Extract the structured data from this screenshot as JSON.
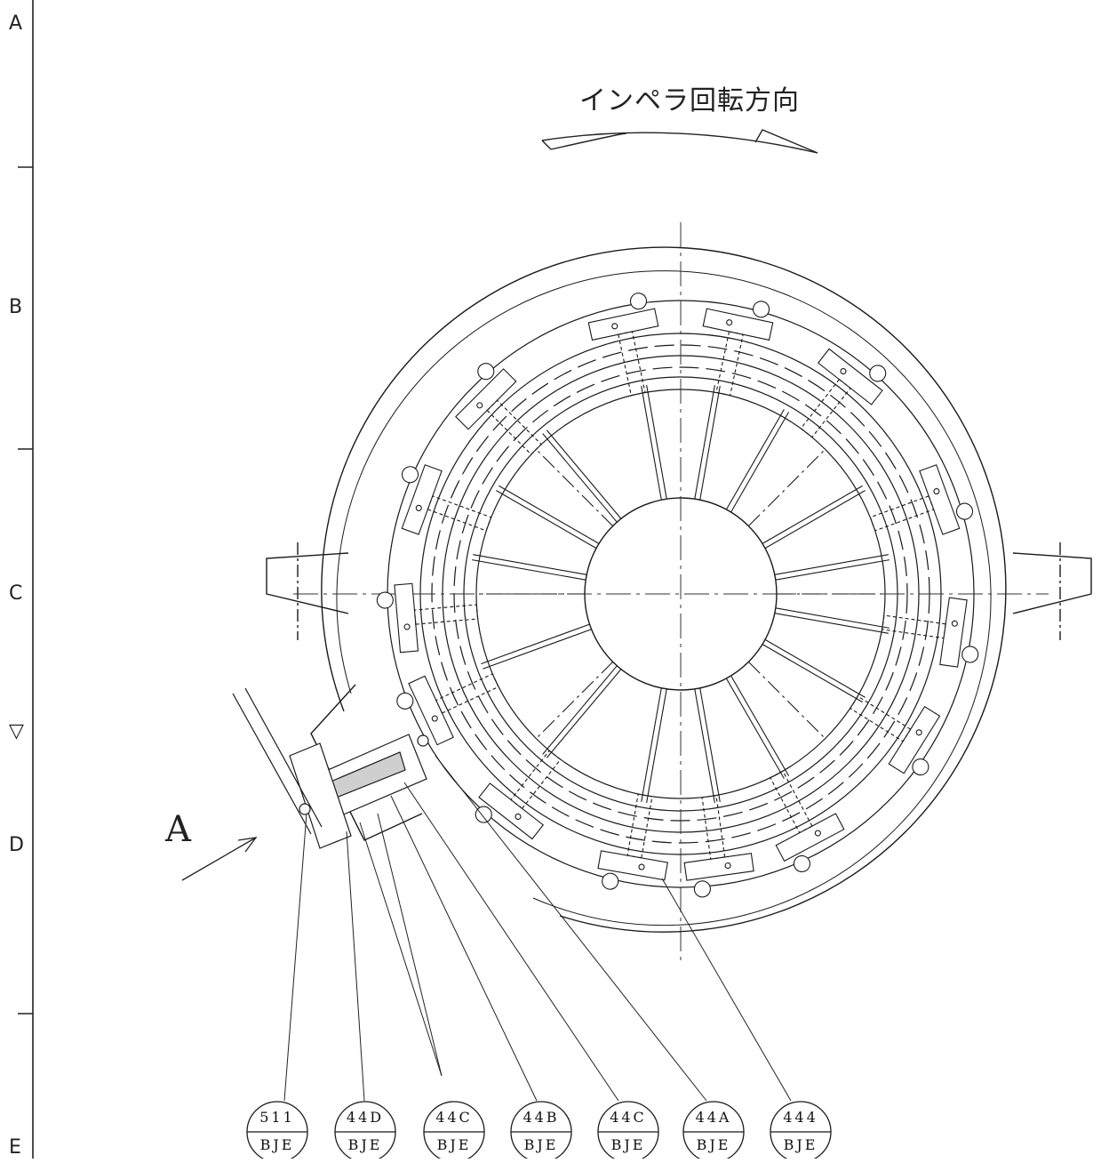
{
  "zone_labels": [
    "A",
    "B",
    "C",
    "▽",
    "D",
    "E"
  ],
  "rotation_direction_label": "インペラ回転方向",
  "view_label": "A",
  "callouts": [
    {
      "top": "511",
      "bottom": "BJE"
    },
    {
      "top": "44D",
      "bottom": "BJE"
    },
    {
      "top": "44C",
      "bottom": "BJE"
    },
    {
      "top": "44B",
      "bottom": "BJE"
    },
    {
      "top": "44C",
      "bottom": "BJE"
    },
    {
      "top": "44A",
      "bottom": "BJE"
    },
    {
      "top": "444",
      "bottom": "BJE"
    }
  ],
  "colors": {
    "line": "#1a1a1a",
    "background": "#ffffff"
  }
}
